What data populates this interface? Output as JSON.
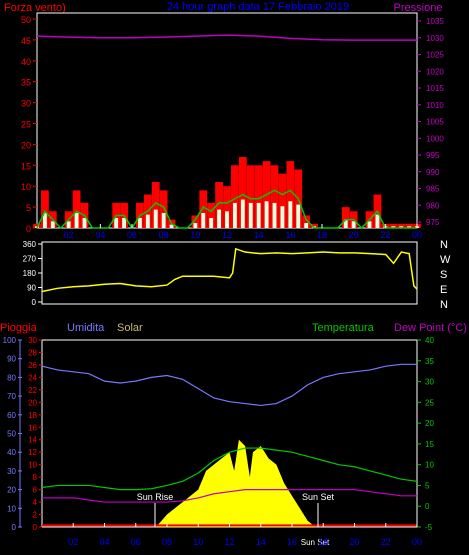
{
  "header": {
    "left_label": "Forza vento)",
    "center_label": "24 hour graph data  17 Febbraio 2019",
    "right_label": "Pressione"
  },
  "middle": {
    "compass": [
      "N",
      "W",
      "S",
      "E",
      "N"
    ]
  },
  "bottom_header": {
    "pioggia": "Pioggia",
    "umidita": "Umidita",
    "solar": "Solar",
    "temperatura": "Temperatura",
    "dew_point": "Dew Point (°C)"
  },
  "annotations": {
    "sun_rise": "Sun Rise",
    "sun_set": "Sun Set",
    "sun_set_small": "Sun Set"
  },
  "colors": {
    "wind_gust": "#ff0000",
    "wind_avg": "#00c800",
    "wind_low": "#e0ffe0",
    "pressure": "#c000c0",
    "direction": "#ffff00",
    "humidity": "#7878ff",
    "temperature": "#00c800",
    "dew_point": "#c000c0",
    "solar": "#ffff00",
    "rain": "#ff0000",
    "frame": "#ffffff",
    "hours": "#0000ff"
  },
  "chart_data": [
    {
      "type": "line",
      "title": "24 hour graph data  17 Febbraio 2019",
      "x_ticks": [
        "02",
        "04",
        "06",
        "08",
        "10",
        "12",
        "14",
        "16",
        "18",
        "20",
        "22",
        "00"
      ],
      "xlim": [
        0,
        24
      ],
      "left_axis": {
        "label": "Forza vento)",
        "ylim": [
          0,
          50
        ],
        "ticks": [
          0,
          5,
          10,
          15,
          20,
          25,
          30,
          35,
          40,
          45,
          50
        ]
      },
      "right_axis": {
        "label": "Pressione",
        "ylim": [
          975,
          1035
        ],
        "ticks": [
          975,
          980,
          985,
          990,
          995,
          1000,
          1005,
          1010,
          1015,
          1020,
          1025,
          1030,
          1035
        ]
      },
      "series": [
        {
          "name": "Gust",
          "axis": "left",
          "style": "bar",
          "x": [
            0,
            0.5,
            1,
            1.5,
            2,
            2.5,
            3,
            3.5,
            4,
            4.5,
            5,
            5.5,
            6,
            6.5,
            7,
            7.5,
            8,
            8.5,
            9,
            9.5,
            10,
            10.5,
            11,
            11.5,
            12,
            12.5,
            13,
            13.5,
            14,
            14.5,
            15,
            15.5,
            16,
            16.5,
            17,
            17.5,
            18,
            18.5,
            19,
            19.5,
            20,
            20.5,
            21,
            21.5,
            22,
            22.5,
            23,
            23.5,
            24
          ],
          "values": [
            1,
            9,
            4,
            0,
            4,
            9,
            6,
            0,
            0,
            0,
            6,
            6,
            0,
            6,
            8,
            11,
            9,
            2,
            0,
            0,
            3,
            9,
            6,
            11,
            10,
            15,
            17,
            15,
            15,
            16,
            15,
            13,
            16,
            14,
            3,
            1,
            0,
            0,
            0,
            5,
            4,
            0,
            4,
            8,
            1,
            1,
            1,
            1,
            1
          ]
        },
        {
          "name": "Average",
          "axis": "left",
          "style": "line",
          "x": [
            0,
            0.5,
            1,
            1.5,
            2,
            2.5,
            3,
            3.5,
            4,
            4.5,
            5,
            5.5,
            6,
            6.5,
            7,
            7.5,
            8,
            8.5,
            9,
            9.5,
            10,
            10.5,
            11,
            11.5,
            12,
            12.5,
            13,
            13.5,
            14,
            14.5,
            15,
            15.5,
            16,
            16.5,
            17,
            17.5,
            18,
            18.5,
            19,
            19.5,
            20,
            20.5,
            21,
            21.5,
            22,
            22.5,
            23,
            23.5,
            24
          ],
          "values": [
            0,
            4,
            2,
            0,
            2,
            4,
            3,
            0,
            0,
            0,
            3,
            3,
            0,
            3,
            4,
            6,
            5,
            1,
            0,
            0,
            2,
            5,
            4,
            6,
            6,
            7,
            8,
            7,
            7,
            8,
            9,
            8,
            9,
            7,
            2,
            0,
            0,
            0,
            0,
            2,
            2,
            0,
            2,
            4,
            0,
            0,
            0,
            0,
            0
          ]
        },
        {
          "name": "Pressione",
          "axis": "right",
          "style": "line",
          "x": [
            0,
            2,
            4,
            6,
            8,
            10,
            12,
            14,
            16,
            18,
            20,
            22,
            24
          ],
          "values": [
            1030.5,
            1030.2,
            1030.0,
            1030.0,
            1030.2,
            1030.5,
            1030.8,
            1030.5,
            1029.8,
            1029.4,
            1029.3,
            1029.3,
            1029.3
          ]
        }
      ]
    },
    {
      "type": "line",
      "title": "",
      "x_ticks": [
        "02",
        "04",
        "06",
        "08",
        "10",
        "12",
        "14",
        "16",
        "18",
        "20",
        "22",
        "00"
      ],
      "xlim": [
        0,
        24
      ],
      "left_axis": {
        "label": "",
        "ylim": [
          0,
          360
        ],
        "ticks": [
          0,
          90,
          180,
          270,
          360
        ]
      },
      "right_axis": {
        "label": "",
        "compass": [
          "N",
          "W",
          "S",
          "E",
          "N"
        ]
      },
      "series": [
        {
          "name": "",
          "axis": "left",
          "style": "line",
          "x": [
            0,
            1,
            2,
            3,
            4,
            5,
            6,
            7,
            8,
            8.5,
            9,
            10,
            11,
            12,
            12.2,
            12.4,
            13,
            14,
            15,
            16,
            17,
            18,
            19,
            20,
            21,
            22,
            22.5,
            23,
            23.5,
            23.8,
            24
          ],
          "values": [
            65,
            85,
            95,
            100,
            110,
            115,
            100,
            95,
            105,
            140,
            160,
            160,
            160,
            150,
            180,
            330,
            310,
            300,
            305,
            300,
            305,
            310,
            305,
            305,
            300,
            295,
            240,
            310,
            300,
            100,
            80
          ]
        }
      ]
    },
    {
      "type": "line",
      "title": "",
      "x_ticks": [
        "02",
        "04",
        "06",
        "08",
        "10",
        "12",
        "14",
        "16",
        "18",
        "20",
        "22",
        "00"
      ],
      "xlim": [
        0,
        24
      ],
      "axes": {
        "umidita": {
          "label": "Umidita",
          "ylim": [
            0,
            100
          ],
          "ticks": [
            0,
            10,
            20,
            30,
            40,
            50,
            60,
            70,
            80,
            90,
            100
          ]
        },
        "pioggia": {
          "label": "Pioggia",
          "ylim": [
            0,
            30
          ],
          "ticks": [
            0,
            2,
            4,
            6,
            8,
            10,
            12,
            14,
            16,
            18,
            20,
            22,
            24,
            26,
            28,
            30
          ]
        },
        "temperatura": {
          "label": "Temperatura",
          "ylim": [
            -5,
            40
          ],
          "ticks": [
            -5,
            0,
            5,
            10,
            15,
            20,
            25,
            30,
            35,
            40
          ]
        }
      },
      "series": [
        {
          "name": "Umidita",
          "axis": "umidita",
          "style": "line",
          "x": [
            0,
            1,
            2,
            3,
            4,
            5,
            6,
            7,
            8,
            9,
            10,
            11,
            12,
            13,
            14,
            15,
            16,
            17,
            18,
            19,
            20,
            21,
            22,
            23,
            24
          ],
          "values": [
            86,
            84,
            83,
            82,
            78,
            77,
            78,
            80,
            81,
            79,
            74,
            69,
            67,
            66,
            65,
            66,
            70,
            76,
            80,
            82,
            83,
            84,
            86,
            87,
            87
          ]
        },
        {
          "name": "Temperatura",
          "axis": "temperatura",
          "style": "line",
          "x": [
            0,
            1,
            2,
            3,
            4,
            5,
            6,
            7,
            8,
            9,
            10,
            11,
            12,
            13,
            14,
            15,
            16,
            17,
            18,
            19,
            20,
            21,
            22,
            23,
            24
          ],
          "values": [
            4.5,
            5,
            5,
            5,
            4.5,
            4,
            4,
            4.2,
            5,
            6,
            8,
            11,
            13,
            14,
            14,
            13.5,
            13,
            12,
            11,
            10,
            9.5,
            8.5,
            7.5,
            6.5,
            6
          ]
        },
        {
          "name": "Dew Point",
          "axis": "temperatura",
          "style": "line",
          "x": [
            0,
            1,
            2,
            3,
            4,
            5,
            6,
            7,
            8,
            9,
            10,
            11,
            12,
            13,
            14,
            15,
            16,
            17,
            18,
            19,
            20,
            21,
            22,
            23,
            24
          ],
          "values": [
            2,
            2,
            2,
            1.5,
            1,
            1,
            1,
            1,
            1,
            1.3,
            2,
            3,
            3.5,
            4,
            4,
            4,
            4,
            4,
            4,
            4,
            4,
            3.5,
            3,
            2.5,
            2.5
          ]
        },
        {
          "name": "Solar",
          "axis": "pioggia",
          "style": "area",
          "x": [
            7.3,
            8,
            9,
            10,
            10.5,
            11,
            11.5,
            12,
            12.3,
            12.6,
            13,
            13.3,
            13.5,
            14,
            14.5,
            15,
            15.5,
            16,
            16.5,
            17,
            17.5
          ],
          "values": [
            0,
            2,
            4,
            6,
            9,
            10,
            11,
            12,
            9,
            14,
            13,
            8,
            12,
            13,
            11,
            10,
            7,
            5,
            3,
            1,
            0
          ]
        },
        {
          "name": "Pioggia",
          "axis": "pioggia",
          "style": "line",
          "x": [
            0,
            24
          ],
          "values": [
            0.1,
            0.1
          ]
        }
      ]
    }
  ]
}
